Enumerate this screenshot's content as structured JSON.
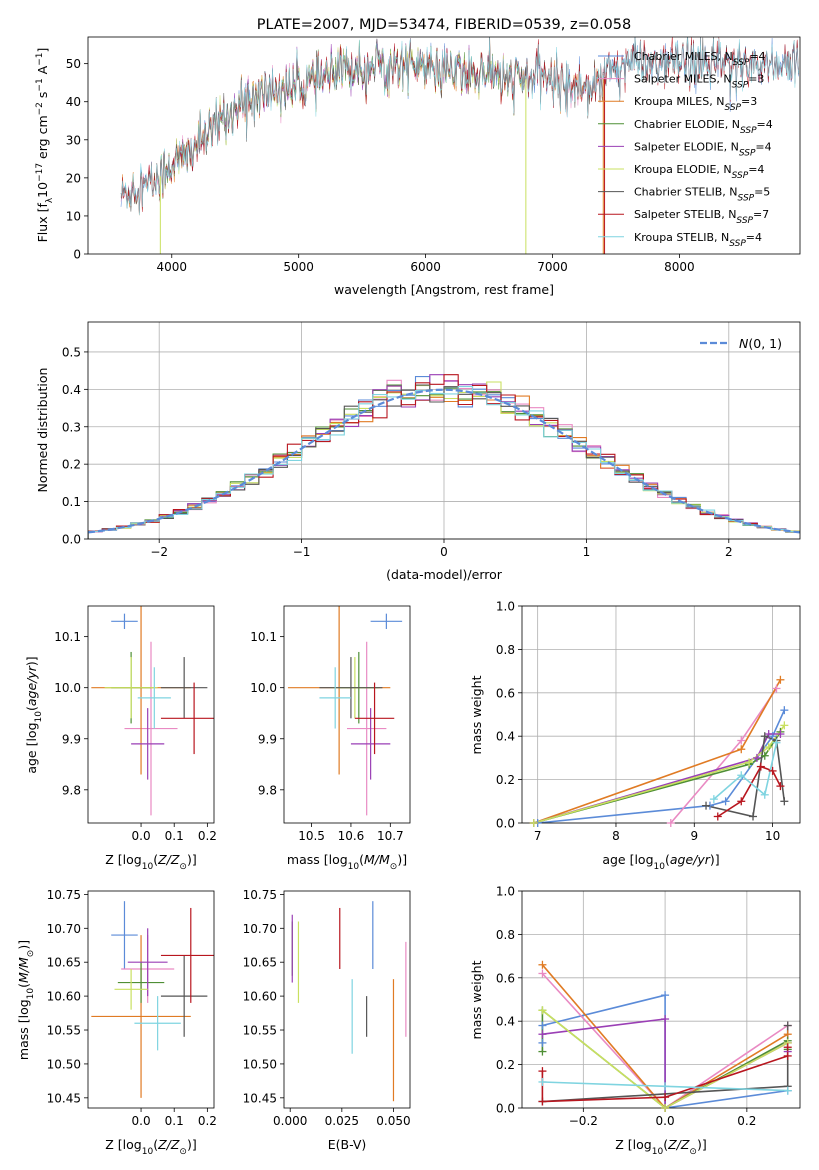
{
  "figure": {
    "title": "PLATE=2007, MJD=53474, FIBERID=0539, z=0.058"
  },
  "chart_data": [
    {
      "id": "spectrum",
      "type": "line",
      "title": "PLATE=2007, MJD=53474, FIBERID=0539, z=0.058",
      "xlabel": "wavelength [Angstrom, rest frame]",
      "ylabel": "Flux [f_λ10^-17 erg cm^-2 s^-1 A^-1]",
      "xlim": [
        3340,
        8950
      ],
      "ylim": [
        0,
        57
      ],
      "xticks": [
        4000,
        5000,
        6000,
        7000,
        8000
      ],
      "yticks": [
        0,
        10,
        20,
        30,
        40,
        50
      ],
      "grid": false,
      "legend_position": "top-right",
      "series": [
        {
          "name": "Chabrier MILES, N_SSP=4",
          "label_main": "Chabrier MILES, N",
          "label_sub": "SSP",
          "label_tail": "=4",
          "color": "#5b8bd8",
          "wave_range": [
            3600,
            8940
          ]
        },
        {
          "name": "Salpeter MILES, N_SSP=3",
          "label_main": "Salpeter MILES, N",
          "label_sub": "SSP",
          "label_tail": "=3",
          "color": "#e98ac3",
          "wave_range": [
            3600,
            7400
          ]
        },
        {
          "name": "Kroupa MILES, N_SSP=3",
          "label_main": "Kroupa MILES, N",
          "label_sub": "SSP",
          "label_tail": "=3",
          "color": "#e07b24",
          "wave_range": [
            3600,
            7400
          ]
        },
        {
          "name": "Chabrier ELODIE, N_SSP=4",
          "label_main": "Chabrier ELODIE, N",
          "label_sub": "SSP",
          "label_tail": "=4",
          "color": "#4f8f35",
          "wave_range": [
            3900,
            6800
          ]
        },
        {
          "name": "Salpeter ELODIE, N_SSP=4",
          "label_main": "Salpeter ELODIE, N",
          "label_sub": "SSP",
          "label_tail": "=4",
          "color": "#9a3fb5",
          "wave_range": [
            3900,
            6800
          ]
        },
        {
          "name": "Kroupa ELODIE, N_SSP=4",
          "label_main": "Kroupa ELODIE, N",
          "label_sub": "SSP",
          "label_tail": "=4",
          "color": "#c9e060",
          "wave_range": [
            3900,
            6800
          ]
        },
        {
          "name": "Chabrier STELIB, N_SSP=5",
          "label_main": "Chabrier STELIB, N",
          "label_sub": "SSP",
          "label_tail": "=5",
          "color": "#555555",
          "wave_range": [
            3600,
            8940
          ]
        },
        {
          "name": "Salpeter STELIB, N_SSP=7",
          "label_main": "Salpeter STELIB, N",
          "label_sub": "SSP",
          "label_tail": "=7",
          "color": "#b8161f",
          "wave_range": [
            3600,
            8940
          ]
        },
        {
          "name": "Kroupa STELIB, N_SSP=4",
          "label_main": "Kroupa STELIB, N",
          "label_sub": "SSP",
          "label_tail": "=4",
          "color": "#7fd4e0",
          "wave_range": [
            3600,
            8940
          ]
        }
      ],
      "continuum": {
        "wavelength": [
          3600,
          3700,
          3800,
          3900,
          4000,
          4100,
          4200,
          4300,
          4400,
          4500,
          4600,
          4700,
          4800,
          4900,
          5000,
          5100,
          5200,
          5300,
          5400,
          5500,
          5600,
          5700,
          5800,
          5900,
          6000,
          6100,
          6200,
          6300,
          6400,
          6500,
          6600,
          6700,
          6800,
          6900,
          7000,
          7100,
          7200,
          7300,
          7400,
          7500
        ],
        "flux": [
          15,
          18,
          18,
          20,
          24,
          25,
          29,
          31,
          36,
          38,
          40,
          42,
          43,
          43,
          44,
          45,
          46,
          47,
          49,
          49,
          50,
          49,
          50,
          50,
          49,
          48,
          48,
          47,
          48,
          48,
          46,
          46,
          46,
          47,
          46,
          45,
          44,
          45,
          46,
          50
        ]
      }
    },
    {
      "id": "residuals",
      "type": "histogram",
      "xlabel": "(data-model)/error",
      "ylabel": "Normed distribution",
      "xlim": [
        -2.5,
        2.5
      ],
      "ylim": [
        0,
        0.58
      ],
      "xticks": [
        -2,
        -1,
        0,
        1,
        2
      ],
      "yticks": [
        0.0,
        0.1,
        0.2,
        0.3,
        0.4,
        0.5
      ],
      "grid": true,
      "legend_position": "top-right",
      "reference_curve": {
        "name": "N(0,1)",
        "mu": 0,
        "sigma": 1,
        "color": "#5b8bd8"
      },
      "bin_edges_step": 0.1,
      "legend_label_main": "N",
      "legend_label_tail": "(0, 1)"
    },
    {
      "id": "age_vs_Z",
      "type": "scatter",
      "xlabel": "Z [log10(Z/Z⊙)]",
      "ylabel": "age [log10(age/yr)]",
      "xlim": [
        -0.16,
        0.22
      ],
      "ylim": [
        9.735,
        10.16
      ],
      "xticks": [
        0.0,
        0.1,
        0.2
      ],
      "yticks": [
        9.8,
        9.9,
        10.0,
        10.1
      ],
      "points": [
        {
          "model": "Chabrier MILES",
          "x": -0.05,
          "y": 10.13,
          "xerr": 0.04,
          "yerr": 0.015
        },
        {
          "model": "Salpeter MILES",
          "x": 0.03,
          "y": 9.92,
          "xerr": 0.08,
          "yerr": 0.17
        },
        {
          "model": "Kroupa MILES",
          "x": 0.0,
          "y": 10.0,
          "xerr": 0.15,
          "yerr": 0.17
        },
        {
          "model": "Chabrier ELODIE",
          "x": -0.03,
          "y": 10.0,
          "xerr": 0.06,
          "yerr": 0.07
        },
        {
          "model": "Salpeter ELODIE",
          "x": 0.02,
          "y": 9.89,
          "xerr": 0.05,
          "yerr": 0.07
        },
        {
          "model": "Kroupa ELODIE",
          "x": -0.03,
          "y": 10.0,
          "xerr": 0.08,
          "yerr": 0.06
        },
        {
          "model": "Chabrier STELIB",
          "x": 0.13,
          "y": 10.0,
          "xerr": 0.07,
          "yerr": 0.06
        },
        {
          "model": "Salpeter STELIB",
          "x": 0.16,
          "y": 9.94,
          "xerr": 0.1,
          "yerr": 0.07
        },
        {
          "model": "Kroupa STELIB",
          "x": 0.04,
          "y": 9.98,
          "xerr": 0.05,
          "yerr": 0.06
        }
      ]
    },
    {
      "id": "age_vs_mass",
      "type": "scatter",
      "xlabel": "mass [log10(M/M⊙)]",
      "ylabel": "",
      "xlim": [
        10.43,
        10.75
      ],
      "ylim": [
        9.735,
        10.16
      ],
      "xticks": [
        10.5,
        10.6,
        10.7
      ],
      "yticks": [
        9.8,
        9.9,
        10.0,
        10.1
      ],
      "points": [
        {
          "model": "Chabrier MILES",
          "x": 10.69,
          "y": 10.13,
          "xerr": 0.04,
          "yerr": 0.015
        },
        {
          "model": "Salpeter MILES",
          "x": 10.64,
          "y": 9.92,
          "xerr": 0.05,
          "yerr": 0.17
        },
        {
          "model": "Kroupa MILES",
          "x": 10.57,
          "y": 10.0,
          "xerr": 0.13,
          "yerr": 0.17
        },
        {
          "model": "Chabrier ELODIE",
          "x": 10.62,
          "y": 10.0,
          "xerr": 0.05,
          "yerr": 0.07
        },
        {
          "model": "Salpeter ELODIE",
          "x": 10.65,
          "y": 9.89,
          "xerr": 0.05,
          "yerr": 0.07
        },
        {
          "model": "Kroupa ELODIE",
          "x": 10.61,
          "y": 10.0,
          "xerr": 0.06,
          "yerr": 0.06
        },
        {
          "model": "Chabrier STELIB",
          "x": 10.6,
          "y": 10.0,
          "xerr": 0.08,
          "yerr": 0.06
        },
        {
          "model": "Salpeter STELIB",
          "x": 10.66,
          "y": 9.94,
          "xerr": 0.05,
          "yerr": 0.07
        },
        {
          "model": "Kroupa STELIB",
          "x": 10.56,
          "y": 9.98,
          "xerr": 0.04,
          "yerr": 0.06
        }
      ]
    },
    {
      "id": "weights_vs_age",
      "type": "line",
      "xlabel": "age [log10(age/yr)]",
      "ylabel": "mass weight",
      "xlim": [
        6.8,
        10.35
      ],
      "ylim": [
        0,
        1.0
      ],
      "xticks": [
        7,
        8,
        9,
        10
      ],
      "yticks": [
        0.0,
        0.2,
        0.4,
        0.6,
        0.8,
        1.0
      ],
      "grid": true,
      "series": [
        {
          "model": "Chabrier MILES",
          "x": [
            7.0,
            9.2,
            9.4,
            10.0,
            10.15
          ],
          "y": [
            0.0,
            0.08,
            0.1,
            0.4,
            0.52
          ]
        },
        {
          "model": "Salpeter MILES",
          "x": [
            8.7,
            9.6,
            10.05
          ],
          "y": [
            0.0,
            0.38,
            0.62
          ]
        },
        {
          "model": "Kroupa MILES",
          "x": [
            6.95,
            9.6,
            10.1
          ],
          "y": [
            0.0,
            0.34,
            0.66
          ]
        },
        {
          "model": "Chabrier ELODIE",
          "x": [
            6.95,
            9.7,
            9.9,
            10.1
          ],
          "y": [
            0.0,
            0.27,
            0.31,
            0.42
          ]
        },
        {
          "model": "Salpeter ELODIE",
          "x": [
            6.95,
            9.8,
            9.95,
            10.1
          ],
          "y": [
            0.0,
            0.3,
            0.41,
            0.41
          ]
        },
        {
          "model": "Kroupa ELODIE",
          "x": [
            6.95,
            9.7,
            9.95,
            10.15
          ],
          "y": [
            0.0,
            0.28,
            0.35,
            0.45
          ]
        },
        {
          "model": "Chabrier STELIB",
          "x": [
            9.15,
            9.75,
            9.9,
            10.05,
            10.15
          ],
          "y": [
            0.08,
            0.03,
            0.4,
            0.38,
            0.1
          ]
        },
        {
          "model": "Salpeter STELIB",
          "x": [
            9.3,
            9.6,
            9.85,
            10.0,
            10.1
          ],
          "y": [
            0.03,
            0.1,
            0.26,
            0.24,
            0.17
          ]
        },
        {
          "model": "Kroupa STELIB",
          "x": [
            9.25,
            9.6,
            9.9,
            10.05
          ],
          "y": [
            0.11,
            0.22,
            0.13,
            0.37
          ]
        }
      ]
    },
    {
      "id": "mass_vs_Z",
      "type": "scatter",
      "xlabel": "Z [log10(Z/Z⊙)]",
      "ylabel": "mass [log10(M/M⊙)]",
      "xlim": [
        -0.16,
        0.22
      ],
      "ylim": [
        10.435,
        10.755
      ],
      "xticks": [
        0.0,
        0.1,
        0.2
      ],
      "yticks": [
        10.45,
        10.5,
        10.55,
        10.6,
        10.65,
        10.7,
        10.75
      ],
      "points": [
        {
          "model": "Chabrier MILES",
          "x": -0.05,
          "y": 10.69,
          "xerr": 0.04,
          "yerr": 0.05
        },
        {
          "model": "Salpeter MILES",
          "x": 0.02,
          "y": 10.64,
          "xerr": 0.08,
          "yerr": 0.05
        },
        {
          "model": "Kroupa MILES",
          "x": 0.0,
          "y": 10.57,
          "xerr": 0.15,
          "yerr": 0.12
        },
        {
          "model": "Chabrier ELODIE",
          "x": 0.0,
          "y": 10.62,
          "xerr": 0.07,
          "yerr": 0.03
        },
        {
          "model": "Salpeter ELODIE",
          "x": 0.02,
          "y": 10.65,
          "xerr": 0.06,
          "yerr": 0.05
        },
        {
          "model": "Kroupa ELODIE",
          "x": -0.03,
          "y": 10.61,
          "xerr": 0.05,
          "yerr": 0.03
        },
        {
          "model": "Chabrier STELIB",
          "x": 0.13,
          "y": 10.6,
          "xerr": 0.07,
          "yerr": 0.06
        },
        {
          "model": "Salpeter STELIB",
          "x": 0.15,
          "y": 10.66,
          "xerr": 0.09,
          "yerr": 0.07
        },
        {
          "model": "Kroupa STELIB",
          "x": 0.05,
          "y": 10.56,
          "xerr": 0.07,
          "yerr": 0.04
        }
      ]
    },
    {
      "id": "mass_vs_ebv",
      "type": "scatter",
      "xlabel": "E(B-V)",
      "ylabel": "",
      "xlim": [
        -0.003,
        0.058
      ],
      "ylim": [
        10.435,
        10.755
      ],
      "xticks": [
        0.0,
        0.025,
        0.05
      ],
      "yticks": [
        10.45,
        10.5,
        10.55,
        10.6,
        10.65,
        10.7,
        10.75
      ],
      "points": [
        {
          "model": "Chabrier MILES",
          "x": 0.04,
          "y": 10.69,
          "yerr": 0.05
        },
        {
          "model": "Salpeter MILES",
          "x": 0.056,
          "y": 10.61,
          "yerr": 0.07
        },
        {
          "model": "Kroupa MILES",
          "x": 0.05,
          "y": 10.535,
          "yerr": 0.09
        },
        {
          "model": "Chabrier ELODIE",
          "x": 0.001,
          "y": 10.67,
          "yerr": 0.04
        },
        {
          "model": "Salpeter ELODIE",
          "x": 0.001,
          "y": 10.67,
          "yerr": 0.05
        },
        {
          "model": "Kroupa ELODIE",
          "x": 0.004,
          "y": 10.65,
          "yerr": 0.06
        },
        {
          "model": "Chabrier STELIB",
          "x": 0.037,
          "y": 10.57,
          "yerr": 0.03
        },
        {
          "model": "Salpeter STELIB",
          "x": 0.024,
          "y": 10.685,
          "yerr": 0.045
        },
        {
          "model": "Kroupa STELIB",
          "x": 0.03,
          "y": 10.57,
          "yerr": 0.055
        }
      ]
    },
    {
      "id": "weights_vs_Z",
      "type": "line",
      "xlabel": "Z [log10(Z/Z⊙)]",
      "ylabel": "mass weight",
      "xlim": [
        -0.35,
        0.33
      ],
      "ylim": [
        0,
        1.0
      ],
      "xticks": [
        -0.2,
        0.0,
        0.2
      ],
      "yticks": [
        0.0,
        0.2,
        0.4,
        0.6,
        0.8,
        1.0
      ],
      "grid": true,
      "series": [
        {
          "model": "Chabrier MILES",
          "x": [
            -0.3,
            -0.3,
            0.0,
            0.0,
            0.3
          ],
          "y": [
            0.3,
            0.38,
            0.52,
            0.0,
            0.08
          ]
        },
        {
          "model": "Salpeter MILES",
          "x": [
            -0.3,
            0.0,
            0.3
          ],
          "y": [
            0.62,
            0.0,
            0.38
          ]
        },
        {
          "model": "Kroupa MILES",
          "x": [
            -0.3,
            0.0,
            0.3
          ],
          "y": [
            0.66,
            0.0,
            0.34
          ]
        },
        {
          "model": "Chabrier ELODIE",
          "x": [
            -0.3,
            -0.3,
            0.0,
            0.3,
            0.3
          ],
          "y": [
            0.26,
            0.45,
            0.0,
            0.31,
            0.27
          ]
        },
        {
          "model": "Salpeter ELODIE",
          "x": [
            -0.3,
            0.0,
            0.0,
            0.3,
            0.3
          ],
          "y": [
            0.34,
            0.41,
            0.0,
            0.3,
            0.26
          ]
        },
        {
          "model": "Kroupa ELODIE",
          "x": [
            -0.3,
            0.0,
            0.3
          ],
          "y": [
            0.45,
            0.0,
            0.3
          ]
        },
        {
          "model": "Chabrier STELIB",
          "x": [
            -0.3,
            0.3,
            0.3
          ],
          "y": [
            0.03,
            0.1,
            0.38
          ]
        },
        {
          "model": "Salpeter STELIB",
          "x": [
            -0.3,
            -0.3,
            0.0,
            0.3,
            0.3
          ],
          "y": [
            0.17,
            0.03,
            0.05,
            0.24,
            0.28
          ]
        },
        {
          "model": "Kroupa STELIB",
          "x": [
            -0.3,
            0.0,
            0.3
          ],
          "y": [
            0.12,
            0.1,
            0.08
          ]
        }
      ]
    }
  ]
}
